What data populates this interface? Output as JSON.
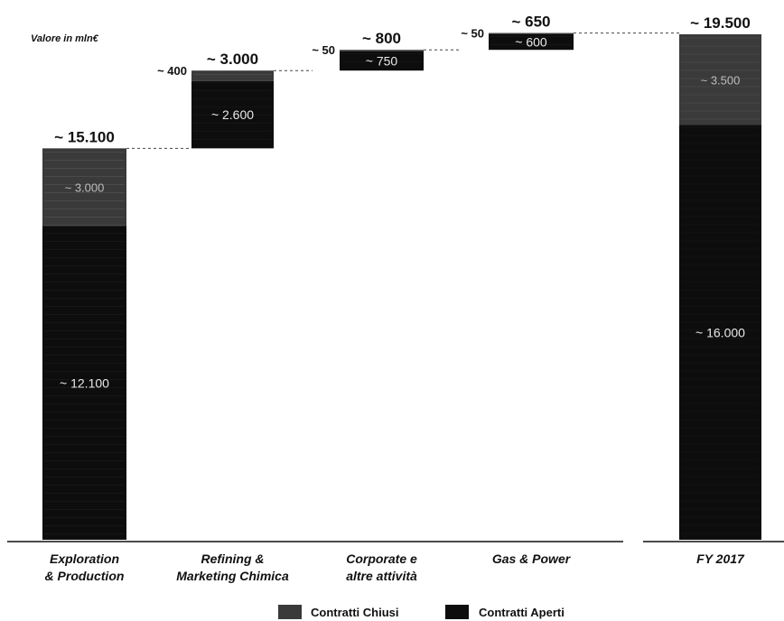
{
  "chart_data": {
    "type": "waterfall",
    "unit_label": "Valore in mln€",
    "categories": [
      [
        "Exploration",
        "& Production"
      ],
      [
        "Refining &",
        "Marketing Chimica"
      ],
      [
        "Corporate e",
        "altre attività"
      ],
      [
        "Gas & Power"
      ],
      [
        "FY 2017"
      ]
    ],
    "series": [
      {
        "name": "Contratti Aperti",
        "values": [
          12100,
          2600,
          750,
          600,
          16000
        ],
        "color": "#0d0d0d"
      },
      {
        "name": "Contratti Chiusi",
        "values": [
          3000,
          400,
          50,
          50,
          3500
        ],
        "color": "#3a3a3a"
      }
    ],
    "totals": [
      "~ 15.100",
      "~ 3.000",
      "~ 800",
      "~ 650",
      "~ 19.500"
    ],
    "inner_labels": {
      "aperti": [
        "~ 12.100",
        "~ 2.600",
        "~ 750",
        "~ 600",
        "~ 16.000"
      ],
      "chiusi": [
        "~ 3.000",
        "~ 400",
        "~ 50",
        "~ 50",
        "~ 3.500"
      ]
    },
    "ylim": [
      0,
      19500
    ],
    "legend": {
      "position": "bottom-right",
      "items": [
        "Contratti Chiusi",
        "Contratti Aperti"
      ]
    }
  }
}
